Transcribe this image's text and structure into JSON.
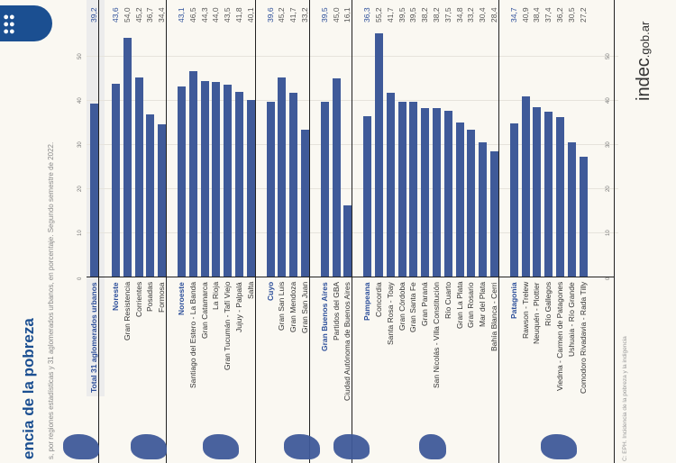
{
  "header": {
    "title": "encia de la pobreza",
    "subtitle": "s, por regiones estadísticas y 31 aglomerados urbanos, en porcentaje. Segundo semestre de 2022.",
    "logo_icon": "people-group-icon"
  },
  "footer": {
    "source": "C: EPH. Incidencia de la pobreza y la indigencia",
    "brand_main": "indec",
    "brand_suffix": ".gob.ar"
  },
  "colors": {
    "bar": "#3f5a99",
    "region_text": "#2d4f9a",
    "logo_bg": "#1b4f91",
    "background": "#faf8f2"
  },
  "chart_data": {
    "type": "bar",
    "orientation": "horizontal",
    "title": "Incidencia de la pobreza",
    "xlabel": "",
    "ylabel": "",
    "xlim": [
      0,
      55
    ],
    "ticks": [
      "0",
      "10",
      "20",
      "30",
      "40",
      "50"
    ],
    "grid": true,
    "groups": [
      {
        "name": "Total 31 aglomerados urbanos",
        "value": 39.2,
        "value_label": "39,2",
        "items": []
      },
      {
        "name": "Noreste",
        "value": 43.6,
        "value_label": "43,6",
        "items": [
          {
            "name": "Gran Resistencia",
            "value": 54.0,
            "value_label": "54,0"
          },
          {
            "name": "Corrientes",
            "value": 45.2,
            "value_label": "45,2"
          },
          {
            "name": "Posadas",
            "value": 36.7,
            "value_label": "36,7"
          },
          {
            "name": "Formosa",
            "value": 34.4,
            "value_label": "34,4"
          }
        ]
      },
      {
        "name": "Noroeste",
        "value": 43.1,
        "value_label": "43,1",
        "items": [
          {
            "name": "Santiago del Estero - La Banda",
            "value": 46.5,
            "value_label": "46,5"
          },
          {
            "name": "Gran Catamarca",
            "value": 44.3,
            "value_label": "44,3"
          },
          {
            "name": "La Rioja",
            "value": 44.0,
            "value_label": "44,0"
          },
          {
            "name": "Gran Tucumán - Tafí Viejo",
            "value": 43.5,
            "value_label": "43,5"
          },
          {
            "name": "Jujuy - Palpalá",
            "value": 41.8,
            "value_label": "41,8"
          },
          {
            "name": "Salta",
            "value": 40.1,
            "value_label": "40,1"
          }
        ]
      },
      {
        "name": "Cuyo",
        "value": 39.6,
        "value_label": "39,6",
        "items": [
          {
            "name": "Gran San Luis",
            "value": 45.2,
            "value_label": "45,2"
          },
          {
            "name": "Gran Mendoza",
            "value": 41.7,
            "value_label": "41,7"
          },
          {
            "name": "Gran San Juan",
            "value": 33.2,
            "value_label": "33,2"
          }
        ]
      },
      {
        "name": "Gran Buenos Aires",
        "value": 39.5,
        "value_label": "39,5",
        "items": [
          {
            "name": "Partidos del GBA",
            "value": 45.0,
            "value_label": "45,0"
          },
          {
            "name": "Ciudad Autónoma de Buenos Aires",
            "value": 16.1,
            "value_label": "16,1"
          }
        ]
      },
      {
        "name": "Pampeana",
        "value": 36.3,
        "value_label": "36,3",
        "items": [
          {
            "name": "Concordia",
            "value": 55.2,
            "value_label": "55,2"
          },
          {
            "name": "Santa Rosa - Toay",
            "value": 41.7,
            "value_label": "41,7"
          },
          {
            "name": "Gran Córdoba",
            "value": 39.5,
            "value_label": "39,5"
          },
          {
            "name": "Gran Santa Fe",
            "value": 39.5,
            "value_label": "39,5"
          },
          {
            "name": "Gran Paraná",
            "value": 38.2,
            "value_label": "38,2"
          },
          {
            "name": "San Nicolás - Villa Constitución",
            "value": 38.2,
            "value_label": "38,2"
          },
          {
            "name": "Río Cuarto",
            "value": 37.5,
            "value_label": "37,5"
          },
          {
            "name": "Gran La Plata",
            "value": 34.8,
            "value_label": "34,8"
          },
          {
            "name": "Gran Rosario",
            "value": 33.2,
            "value_label": "33,2"
          },
          {
            "name": "Mar del Plata",
            "value": 30.4,
            "value_label": "30,4"
          },
          {
            "name": "Bahía Blanca - Cerri",
            "value": 28.4,
            "value_label": "28,4"
          }
        ]
      },
      {
        "name": "Patagonia",
        "value": 34.7,
        "value_label": "34,7",
        "items": [
          {
            "name": "Rawson - Trelew",
            "value": 40.9,
            "value_label": "40,9"
          },
          {
            "name": "Neuquén - Plottier",
            "value": 38.4,
            "value_label": "38,4"
          },
          {
            "name": "Río Gallegos",
            "value": 37.4,
            "value_label": "37,4"
          },
          {
            "name": "Viedma - Carmen de Patagones",
            "value": 36.2,
            "value_label": "36,2"
          },
          {
            "name": "Ushuaia - Río Grande",
            "value": 30.5,
            "value_label": "30,5"
          },
          {
            "name": "Comodoro Rivadavia - Rada Tilly",
            "value": 27.2,
            "value_label": "27,2"
          }
        ]
      }
    ]
  }
}
